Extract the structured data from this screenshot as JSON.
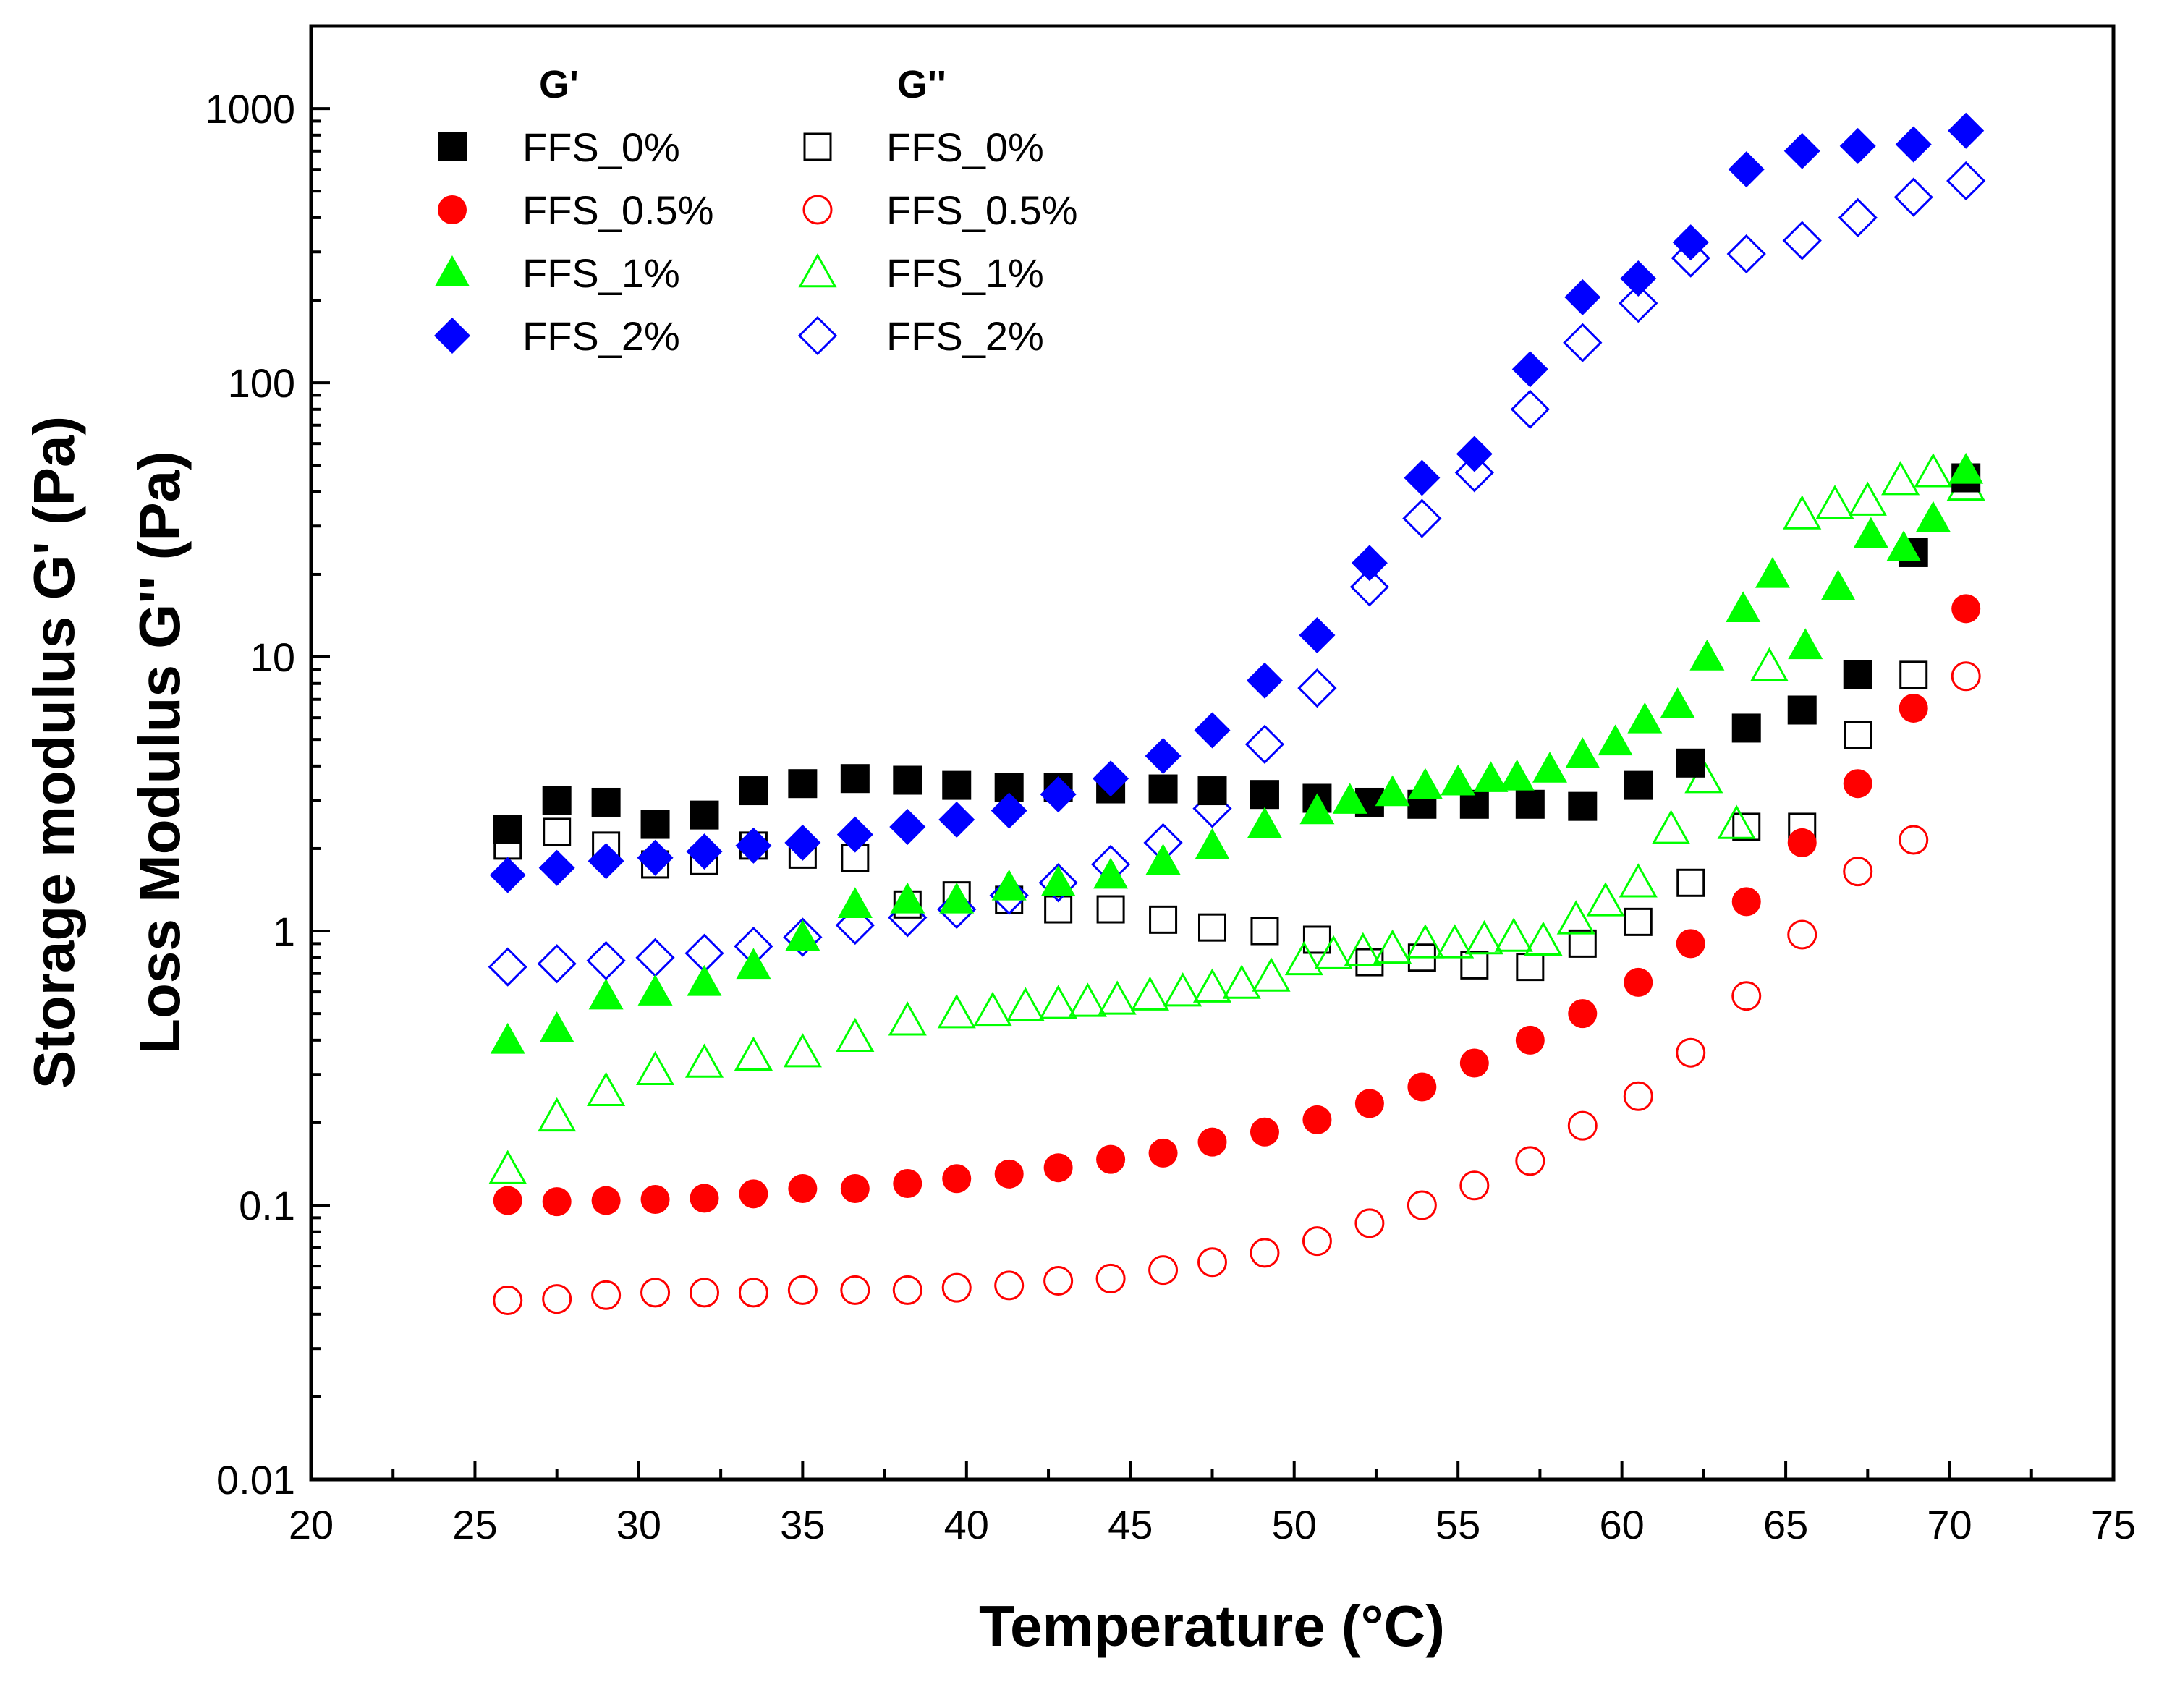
{
  "chart_data": {
    "type": "scatter",
    "title": "",
    "xlabel": "Temperature (°C)",
    "ylabel": [
      "Storage modulus G' (Pa)",
      "Loss Modulus G'' (Pa)"
    ],
    "xlim": [
      20,
      75
    ],
    "ylim": [
      0.01,
      2000
    ],
    "yscale": "log",
    "grid": false,
    "legend_position": "top-left",
    "x_ticks": [
      20,
      25,
      30,
      35,
      40,
      45,
      50,
      55,
      60,
      65,
      70,
      75
    ],
    "x_tick_labels": [
      "20",
      "25",
      "30",
      "35",
      "40",
      "45",
      "50",
      "55",
      "60",
      "65",
      "70",
      "75"
    ],
    "y_ticks": [
      0.01,
      0.1,
      1,
      10,
      100,
      1000
    ],
    "y_tick_labels": [
      "0.01",
      "0.1",
      "1",
      "10",
      "100",
      "1000"
    ],
    "legend": {
      "g1_header": "G'",
      "g2_header": "G''",
      "labels": [
        "FFS_0%",
        "FFS_0.5%",
        "FFS_1%",
        "FFS_2%"
      ]
    },
    "series": [
      {
        "name": "FFS_0%",
        "modulus": "G'",
        "marker": "square",
        "filled": true,
        "color": "#000000",
        "points": [
          [
            26.0,
            2.35
          ],
          [
            27.5,
            3.0
          ],
          [
            29.0,
            2.95
          ],
          [
            30.5,
            2.45
          ],
          [
            32.0,
            2.65
          ],
          [
            33.5,
            3.25
          ],
          [
            35.0,
            3.45
          ],
          [
            36.6,
            3.6
          ],
          [
            38.2,
            3.55
          ],
          [
            39.7,
            3.4
          ],
          [
            41.3,
            3.35
          ],
          [
            42.8,
            3.35
          ],
          [
            44.4,
            3.3
          ],
          [
            46.0,
            3.3
          ],
          [
            47.5,
            3.25
          ],
          [
            49.1,
            3.15
          ],
          [
            50.7,
            3.05
          ],
          [
            52.3,
            2.95
          ],
          [
            53.9,
            2.9
          ],
          [
            55.5,
            2.9
          ],
          [
            57.2,
            2.9
          ],
          [
            58.8,
            2.85
          ],
          [
            60.5,
            3.4
          ],
          [
            62.1,
            4.1
          ],
          [
            63.8,
            5.5
          ],
          [
            65.5,
            6.4
          ],
          [
            67.2,
            8.6
          ],
          [
            68.9,
            24
          ],
          [
            70.5,
            45
          ]
        ]
      },
      {
        "name": "FFS_0.5%",
        "modulus": "G'",
        "marker": "circle",
        "filled": true,
        "color": "#ff0000",
        "points": [
          [
            26.0,
            0.104
          ],
          [
            27.5,
            0.103
          ],
          [
            29.0,
            0.104
          ],
          [
            30.5,
            0.105
          ],
          [
            32.0,
            0.106
          ],
          [
            33.5,
            0.11
          ],
          [
            35.0,
            0.115
          ],
          [
            36.6,
            0.115
          ],
          [
            38.2,
            0.12
          ],
          [
            39.7,
            0.125
          ],
          [
            41.3,
            0.13
          ],
          [
            42.8,
            0.137
          ],
          [
            44.4,
            0.147
          ],
          [
            46.0,
            0.155
          ],
          [
            47.5,
            0.17
          ],
          [
            49.1,
            0.185
          ],
          [
            50.7,
            0.205
          ],
          [
            52.3,
            0.235
          ],
          [
            53.9,
            0.27
          ],
          [
            55.5,
            0.33
          ],
          [
            57.2,
            0.4
          ],
          [
            58.8,
            0.5
          ],
          [
            60.5,
            0.65
          ],
          [
            62.1,
            0.9
          ],
          [
            63.8,
            1.28
          ],
          [
            65.5,
            2.1
          ],
          [
            67.2,
            3.45
          ],
          [
            68.9,
            6.5
          ],
          [
            70.5,
            15
          ]
        ]
      },
      {
        "name": "FFS_1%",
        "modulus": "G'",
        "marker": "triangle",
        "filled": true,
        "color": "#00ff00",
        "points": [
          [
            26.0,
            0.4
          ],
          [
            27.5,
            0.44
          ],
          [
            29.0,
            0.58
          ],
          [
            30.5,
            0.6
          ],
          [
            32.0,
            0.65
          ],
          [
            33.5,
            0.75
          ],
          [
            35.0,
            0.95
          ],
          [
            36.6,
            1.25
          ],
          [
            38.2,
            1.3
          ],
          [
            39.7,
            1.3
          ],
          [
            41.3,
            1.45
          ],
          [
            42.8,
            1.5
          ],
          [
            44.4,
            1.6
          ],
          [
            46.0,
            1.8
          ],
          [
            47.5,
            2.05
          ],
          [
            49.1,
            2.45
          ],
          [
            50.7,
            2.75
          ],
          [
            51.7,
            3.0
          ],
          [
            53.0,
            3.2
          ],
          [
            54.0,
            3.4
          ],
          [
            55.0,
            3.5
          ],
          [
            56.0,
            3.6
          ],
          [
            56.8,
            3.65
          ],
          [
            57.8,
            3.9
          ],
          [
            58.8,
            4.4
          ],
          [
            59.8,
            4.9
          ],
          [
            60.7,
            5.9
          ],
          [
            61.7,
            6.7
          ],
          [
            62.6,
            10
          ],
          [
            63.7,
            15
          ],
          [
            64.6,
            20
          ],
          [
            65.6,
            11
          ],
          [
            66.6,
            18
          ],
          [
            67.6,
            28
          ],
          [
            68.6,
            25
          ],
          [
            69.5,
            32
          ],
          [
            70.5,
            48
          ]
        ]
      },
      {
        "name": "FFS_2%",
        "modulus": "G'",
        "marker": "diamond",
        "filled": true,
        "color": "#0000ff",
        "points": [
          [
            26.0,
            1.6
          ],
          [
            27.5,
            1.7
          ],
          [
            29.0,
            1.8
          ],
          [
            30.5,
            1.85
          ],
          [
            32.0,
            1.95
          ],
          [
            33.5,
            2.05
          ],
          [
            35.0,
            2.1
          ],
          [
            36.6,
            2.25
          ],
          [
            38.2,
            2.4
          ],
          [
            39.7,
            2.55
          ],
          [
            41.3,
            2.75
          ],
          [
            42.8,
            3.15
          ],
          [
            44.4,
            3.6
          ],
          [
            46.0,
            4.35
          ],
          [
            47.5,
            5.4
          ],
          [
            49.1,
            8.2
          ],
          [
            50.7,
            12
          ],
          [
            52.3,
            22
          ],
          [
            53.9,
            45
          ],
          [
            55.5,
            55
          ],
          [
            57.2,
            112
          ],
          [
            58.8,
            205
          ],
          [
            60.5,
            240
          ],
          [
            62.1,
            325
          ],
          [
            63.8,
            600
          ],
          [
            65.5,
            700
          ],
          [
            67.2,
            730
          ],
          [
            68.9,
            740
          ],
          [
            70.5,
            830
          ]
        ]
      },
      {
        "name": "FFS_0%",
        "modulus": "G''",
        "marker": "square",
        "filled": false,
        "color": "#000000",
        "points": [
          [
            26.0,
            2.05
          ],
          [
            27.5,
            2.3
          ],
          [
            29.0,
            2.05
          ],
          [
            30.5,
            1.75
          ],
          [
            32.0,
            1.8
          ],
          [
            33.5,
            2.05
          ],
          [
            35.0,
            1.9
          ],
          [
            36.6,
            1.85
          ],
          [
            38.2,
            1.25
          ],
          [
            39.7,
            1.35
          ],
          [
            41.3,
            1.3
          ],
          [
            42.8,
            1.2
          ],
          [
            44.4,
            1.2
          ],
          [
            46.0,
            1.1
          ],
          [
            47.5,
            1.03
          ],
          [
            49.1,
            1.0
          ],
          [
            50.7,
            0.93
          ],
          [
            52.3,
            0.77
          ],
          [
            53.9,
            0.8
          ],
          [
            55.5,
            0.75
          ],
          [
            57.2,
            0.74
          ],
          [
            58.8,
            0.9
          ],
          [
            60.5,
            1.08
          ],
          [
            62.1,
            1.5
          ],
          [
            63.8,
            2.4
          ],
          [
            65.5,
            2.4
          ],
          [
            67.2,
            5.2
          ],
          [
            68.9,
            8.6
          ],
          [
            70.5,
            45
          ]
        ]
      },
      {
        "name": "FFS_0.5%",
        "modulus": "G''",
        "marker": "circle",
        "filled": false,
        "color": "#ff0000",
        "points": [
          [
            26.0,
            0.045
          ],
          [
            27.5,
            0.0455
          ],
          [
            29.0,
            0.047
          ],
          [
            30.5,
            0.048
          ],
          [
            32.0,
            0.048
          ],
          [
            33.5,
            0.048
          ],
          [
            35.0,
            0.049
          ],
          [
            36.6,
            0.049
          ],
          [
            38.2,
            0.049
          ],
          [
            39.7,
            0.05
          ],
          [
            41.3,
            0.051
          ],
          [
            42.8,
            0.053
          ],
          [
            44.4,
            0.054
          ],
          [
            46.0,
            0.058
          ],
          [
            47.5,
            0.062
          ],
          [
            49.1,
            0.067
          ],
          [
            50.7,
            0.074
          ],
          [
            52.3,
            0.086
          ],
          [
            53.9,
            0.1
          ],
          [
            55.5,
            0.118
          ],
          [
            57.2,
            0.145
          ],
          [
            58.8,
            0.195
          ],
          [
            60.5,
            0.25
          ],
          [
            62.1,
            0.36
          ],
          [
            63.8,
            0.58
          ],
          [
            65.5,
            0.97
          ],
          [
            67.2,
            1.65
          ],
          [
            68.9,
            2.15
          ],
          [
            70.5,
            8.5
          ]
        ]
      },
      {
        "name": "FFS_1%",
        "modulus": "G''",
        "marker": "triangle",
        "filled": false,
        "color": "#00ff00",
        "points": [
          [
            26.0,
            0.135
          ],
          [
            27.5,
            0.21
          ],
          [
            29.0,
            0.26
          ],
          [
            30.5,
            0.31
          ],
          [
            32.0,
            0.33
          ],
          [
            33.5,
            0.35
          ],
          [
            35.0,
            0.36
          ],
          [
            36.6,
            0.41
          ],
          [
            38.2,
            0.47
          ],
          [
            39.7,
            0.5
          ],
          [
            40.8,
            0.51
          ],
          [
            41.8,
            0.53
          ],
          [
            42.8,
            0.54
          ],
          [
            43.7,
            0.55
          ],
          [
            44.6,
            0.56
          ],
          [
            45.6,
            0.58
          ],
          [
            46.6,
            0.6
          ],
          [
            47.5,
            0.62
          ],
          [
            48.4,
            0.64
          ],
          [
            49.3,
            0.68
          ],
          [
            50.3,
            0.78
          ],
          [
            51.2,
            0.82
          ],
          [
            52.1,
            0.84
          ],
          [
            53.0,
            0.86
          ],
          [
            54.0,
            0.9
          ],
          [
            54.9,
            0.9
          ],
          [
            55.8,
            0.93
          ],
          [
            56.7,
            0.95
          ],
          [
            57.6,
            0.92
          ],
          [
            58.6,
            1.1
          ],
          [
            59.5,
            1.28
          ],
          [
            60.5,
            1.5
          ],
          [
            61.5,
            2.35
          ],
          [
            62.5,
            3.6
          ],
          [
            63.5,
            2.45
          ],
          [
            64.5,
            9.2
          ],
          [
            65.5,
            33
          ],
          [
            66.5,
            36
          ],
          [
            67.5,
            37
          ],
          [
            68.5,
            44
          ],
          [
            69.5,
            47
          ],
          [
            70.5,
            42
          ]
        ]
      },
      {
        "name": "FFS_2%",
        "modulus": "G''",
        "marker": "diamond",
        "filled": false,
        "color": "#0000ff",
        "points": [
          [
            26.0,
            0.74
          ],
          [
            27.5,
            0.76
          ],
          [
            29.0,
            0.78
          ],
          [
            30.5,
            0.8
          ],
          [
            32.0,
            0.83
          ],
          [
            33.5,
            0.88
          ],
          [
            35.0,
            0.95
          ],
          [
            36.6,
            1.05
          ],
          [
            38.2,
            1.12
          ],
          [
            39.7,
            1.2
          ],
          [
            41.3,
            1.35
          ],
          [
            42.8,
            1.5
          ],
          [
            44.4,
            1.75
          ],
          [
            46.0,
            2.1
          ],
          [
            47.5,
            2.8
          ],
          [
            49.1,
            4.8
          ],
          [
            50.7,
            7.7
          ],
          [
            52.3,
            18
          ],
          [
            53.9,
            32
          ],
          [
            55.5,
            47
          ],
          [
            57.2,
            80
          ],
          [
            58.8,
            140
          ],
          [
            60.5,
            195
          ],
          [
            62.1,
            285
          ],
          [
            63.8,
            295
          ],
          [
            65.5,
            330
          ],
          [
            67.2,
            400
          ],
          [
            68.9,
            475
          ],
          [
            70.5,
            545
          ]
        ]
      }
    ]
  }
}
